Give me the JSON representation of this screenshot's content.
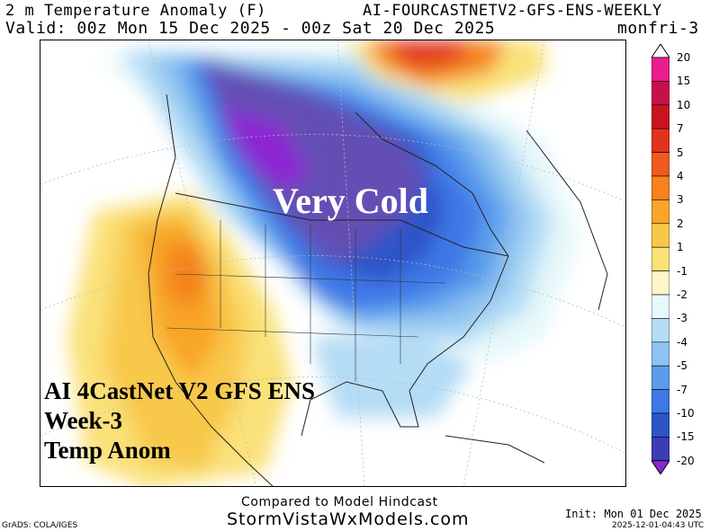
{
  "header": {
    "title_left": "2 m Temperature Anomaly (F)",
    "title_right": "AI-FOURCASTNETV2-GFS-ENS-WEEKLY",
    "valid": "Valid: 00z Mon 15 Dec 2025 - 00z Sat 20 Dec 2025",
    "run_tag": "monfri-3"
  },
  "map": {
    "overlay_main": "Very Cold",
    "overlay_lines": [
      "AI 4CastNet V2 GFS ENS",
      "Week-3",
      "Temp Anom"
    ]
  },
  "colorbar": {
    "labels": [
      "20",
      "15",
      "10",
      "7",
      "5",
      "4",
      "3",
      "2",
      "1",
      "-1",
      "-2",
      "-3",
      "-4",
      "-5",
      "-7",
      "-10",
      "-15",
      "-20"
    ],
    "colors": [
      "#e91e8c",
      "#c80f4b",
      "#c8141e",
      "#e1321e",
      "#f05a1e",
      "#f5821e",
      "#f8a528",
      "#f8c84b",
      "#fae178",
      "#fff5c8",
      "#e6f8fa",
      "#b4dcf5",
      "#8cc3f0",
      "#5a9bec",
      "#3c78e6",
      "#2d55c8",
      "#3c3cb4",
      "#6450b4",
      "#8c28d2"
    ]
  },
  "footer": {
    "compared": "Compared to Model Hindcast",
    "site": "StormVistaWxModels.com",
    "grads": "GrADS: COLA/IGES",
    "init": "Init: Mon 01 Dec 2025",
    "timestamp": "2025-12-01-04:43 UTC"
  }
}
